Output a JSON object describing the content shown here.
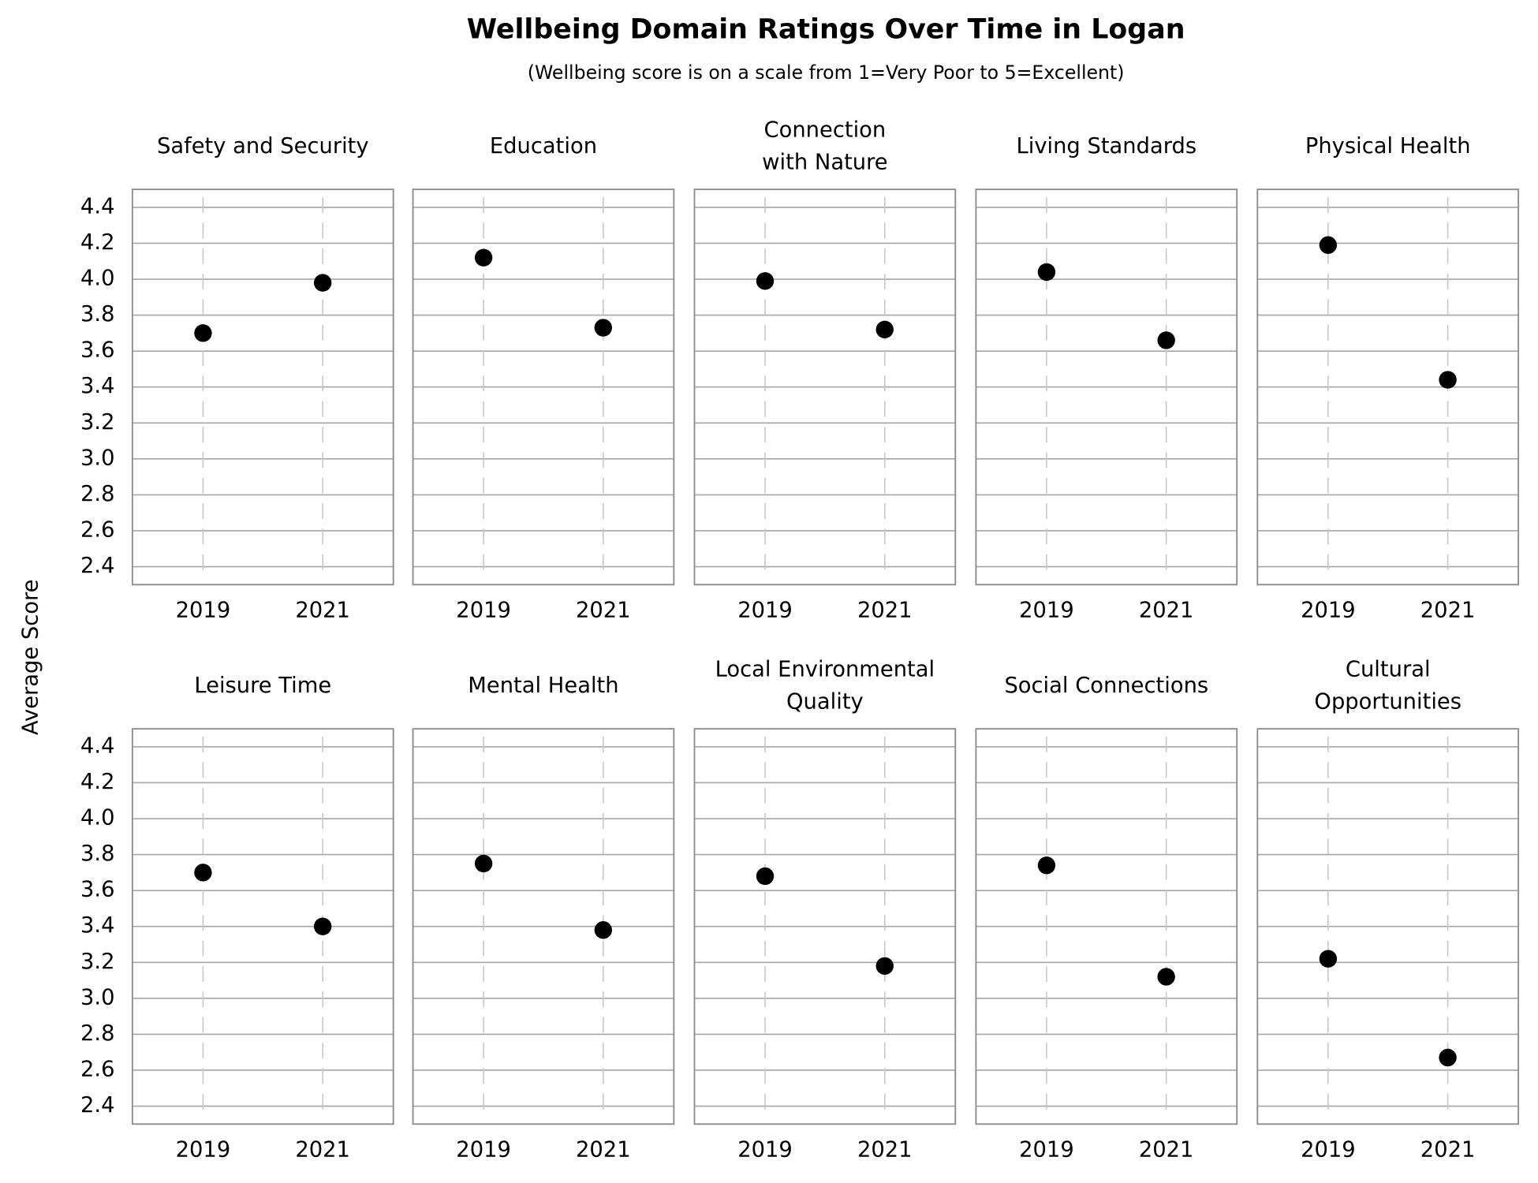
{
  "title": "Wellbeing Domain Ratings Over Time in Logan",
  "subtitle": "(Wellbeing score is on a scale from 1=Very Poor to 5=Excellent)",
  "y_label": "Average Score",
  "chart_data": [
    {
      "type": "scatter",
      "title": [
        "Safety and Security"
      ],
      "categories": [
        "2019",
        "2021"
      ],
      "values": [
        3.7,
        3.98
      ],
      "color": "#000000",
      "ylim": [
        2.3,
        4.5
      ],
      "yticks": [
        {
          "value": 2.4,
          "label": "2.4"
        },
        {
          "value": 2.6,
          "label": "2.6"
        },
        {
          "value": 2.8,
          "label": "2.8"
        },
        {
          "value": 3,
          "label": "3.0"
        },
        {
          "value": 3.2,
          "label": "3.2"
        },
        {
          "value": 3.4,
          "label": "3.4"
        },
        {
          "value": 3.6,
          "label": "3.6"
        },
        {
          "value": 3.8,
          "label": "3.8"
        },
        {
          "value": 4,
          "label": "4.0"
        },
        {
          "value": 4.2,
          "label": "4.2"
        },
        {
          "value": 4.4,
          "label": "4.4"
        }
      ],
      "grid": true
    },
    {
      "type": "scatter",
      "title": [
        "Education"
      ],
      "categories": [
        "2019",
        "2021"
      ],
      "values": [
        4.12,
        3.73
      ],
      "color": "#000000",
      "ylim": [
        2.3,
        4.5
      ],
      "yticks": [
        2.4,
        2.6,
        2.8,
        3,
        3.2,
        3.4,
        3.6,
        3.8,
        4,
        4.2,
        4.4
      ],
      "grid": true
    },
    {
      "type": "scatter",
      "title": [
        "Connection",
        "with Nature"
      ],
      "categories": [
        "2019",
        "2021"
      ],
      "values": [
        3.99,
        3.72
      ],
      "color": "#000000",
      "ylim": [
        2.3,
        4.5
      ],
      "yticks": [
        2.4,
        2.6,
        2.8,
        3,
        3.2,
        3.4,
        3.6,
        3.8,
        4,
        4.2,
        4.4
      ],
      "grid": true
    },
    {
      "type": "scatter",
      "title": [
        "Living Standards"
      ],
      "categories": [
        "2019",
        "2021"
      ],
      "values": [
        4.04,
        3.66
      ],
      "color": "#000000",
      "ylim": [
        2.3,
        4.5
      ],
      "yticks": [
        2.4,
        2.6,
        2.8,
        3,
        3.2,
        3.4,
        3.6,
        3.8,
        4,
        4.2,
        4.4
      ],
      "grid": true
    },
    {
      "type": "scatter",
      "title": [
        "Physical Health"
      ],
      "categories": [
        "2019",
        "2021"
      ],
      "values": [
        4.19,
        3.44
      ],
      "color": "#000000",
      "ylim": [
        2.3,
        4.5
      ],
      "yticks": [
        2.4,
        2.6,
        2.8,
        3,
        3.2,
        3.4,
        3.6,
        3.8,
        4,
        4.2,
        4.4
      ],
      "grid": true
    },
    {
      "type": "scatter",
      "title": [
        "Leisure Time"
      ],
      "categories": [
        "2019",
        "2021"
      ],
      "values": [
        3.7,
        3.4
      ],
      "color": "#000000",
      "ylim": [
        2.3,
        4.5
      ],
      "yticks": [
        {
          "value": 2.4,
          "label": "2.4"
        },
        {
          "value": 2.6,
          "label": "2.6"
        },
        {
          "value": 2.8,
          "label": "2.8"
        },
        {
          "value": 3,
          "label": "3.0"
        },
        {
          "value": 3.2,
          "label": "3.2"
        },
        {
          "value": 3.4,
          "label": "3.4"
        },
        {
          "value": 3.6,
          "label": "3.6"
        },
        {
          "value": 3.8,
          "label": "3.8"
        },
        {
          "value": 4,
          "label": "4.0"
        },
        {
          "value": 4.2,
          "label": "4.2"
        },
        {
          "value": 4.4,
          "label": "4.4"
        }
      ],
      "grid": true
    },
    {
      "type": "scatter",
      "title": [
        "Mental Health"
      ],
      "categories": [
        "2019",
        "2021"
      ],
      "values": [
        3.75,
        3.38
      ],
      "color": "#000000",
      "ylim": [
        2.3,
        4.5
      ],
      "yticks": [
        2.4,
        2.6,
        2.8,
        3,
        3.2,
        3.4,
        3.6,
        3.8,
        4,
        4.2,
        4.4
      ],
      "grid": true
    },
    {
      "type": "scatter",
      "title": [
        "Local Environmental",
        "Quality"
      ],
      "categories": [
        "2019",
        "2021"
      ],
      "values": [
        3.68,
        3.18
      ],
      "color": "#000000",
      "ylim": [
        2.3,
        4.5
      ],
      "yticks": [
        2.4,
        2.6,
        2.8,
        3,
        3.2,
        3.4,
        3.6,
        3.8,
        4,
        4.2,
        4.4
      ],
      "grid": true
    },
    {
      "type": "scatter",
      "title": [
        "Social Connections"
      ],
      "categories": [
        "2019",
        "2021"
      ],
      "values": [
        3.74,
        3.12
      ],
      "color": "#000000",
      "ylim": [
        2.3,
        4.5
      ],
      "yticks": [
        2.4,
        2.6,
        2.8,
        3,
        3.2,
        3.4,
        3.6,
        3.8,
        4,
        4.2,
        4.4
      ],
      "grid": true
    },
    {
      "type": "scatter",
      "title": [
        "Cultural",
        "Opportunities"
      ],
      "categories": [
        "2019",
        "2021"
      ],
      "values": [
        3.22,
        2.67
      ],
      "color": "#000000",
      "ylim": [
        2.3,
        4.5
      ],
      "yticks": [
        2.4,
        2.6,
        2.8,
        3,
        3.2,
        3.4,
        3.6,
        3.8,
        4,
        4.2,
        4.4
      ],
      "grid": true
    }
  ]
}
